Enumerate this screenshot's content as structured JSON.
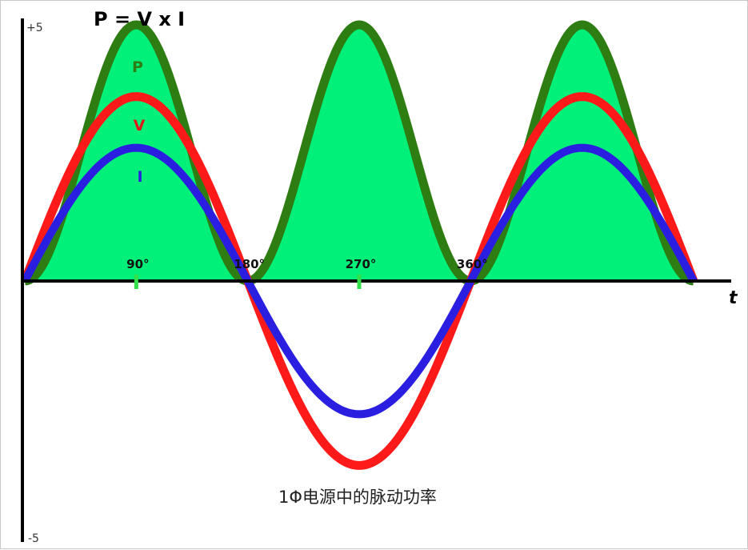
{
  "chart_data": {
    "type": "line",
    "title": "P = V x I",
    "subtitle": "1Φ电源中的脉动功率",
    "xlabel": "t",
    "ylabel": "",
    "ylim": [
      -5,
      5
    ],
    "ytick_labels": {
      "top": "+5",
      "bottom": "-5"
    },
    "x_range_deg": [
      0,
      540
    ],
    "x_ticks": [
      {
        "deg": 90,
        "label": "90°",
        "marker": true
      },
      {
        "deg": 180,
        "label": "180°",
        "marker": false
      },
      {
        "deg": 270,
        "label": "270°",
        "marker": true
      },
      {
        "deg": 360,
        "label": "360°",
        "marker": false
      }
    ],
    "series": [
      {
        "name": "P",
        "formula": "V*I scaled",
        "peak": 5.0,
        "color": "#2e7d12",
        "fill": "#00f07a"
      },
      {
        "name": "V",
        "formula": "sin",
        "amplitude": 3.6,
        "color": "#ff1a1a"
      },
      {
        "name": "I",
        "formula": "sin",
        "amplitude": 2.6,
        "color": "#2a1fe0"
      }
    ],
    "grid": false,
    "legend": "inline labels on first peak"
  }
}
